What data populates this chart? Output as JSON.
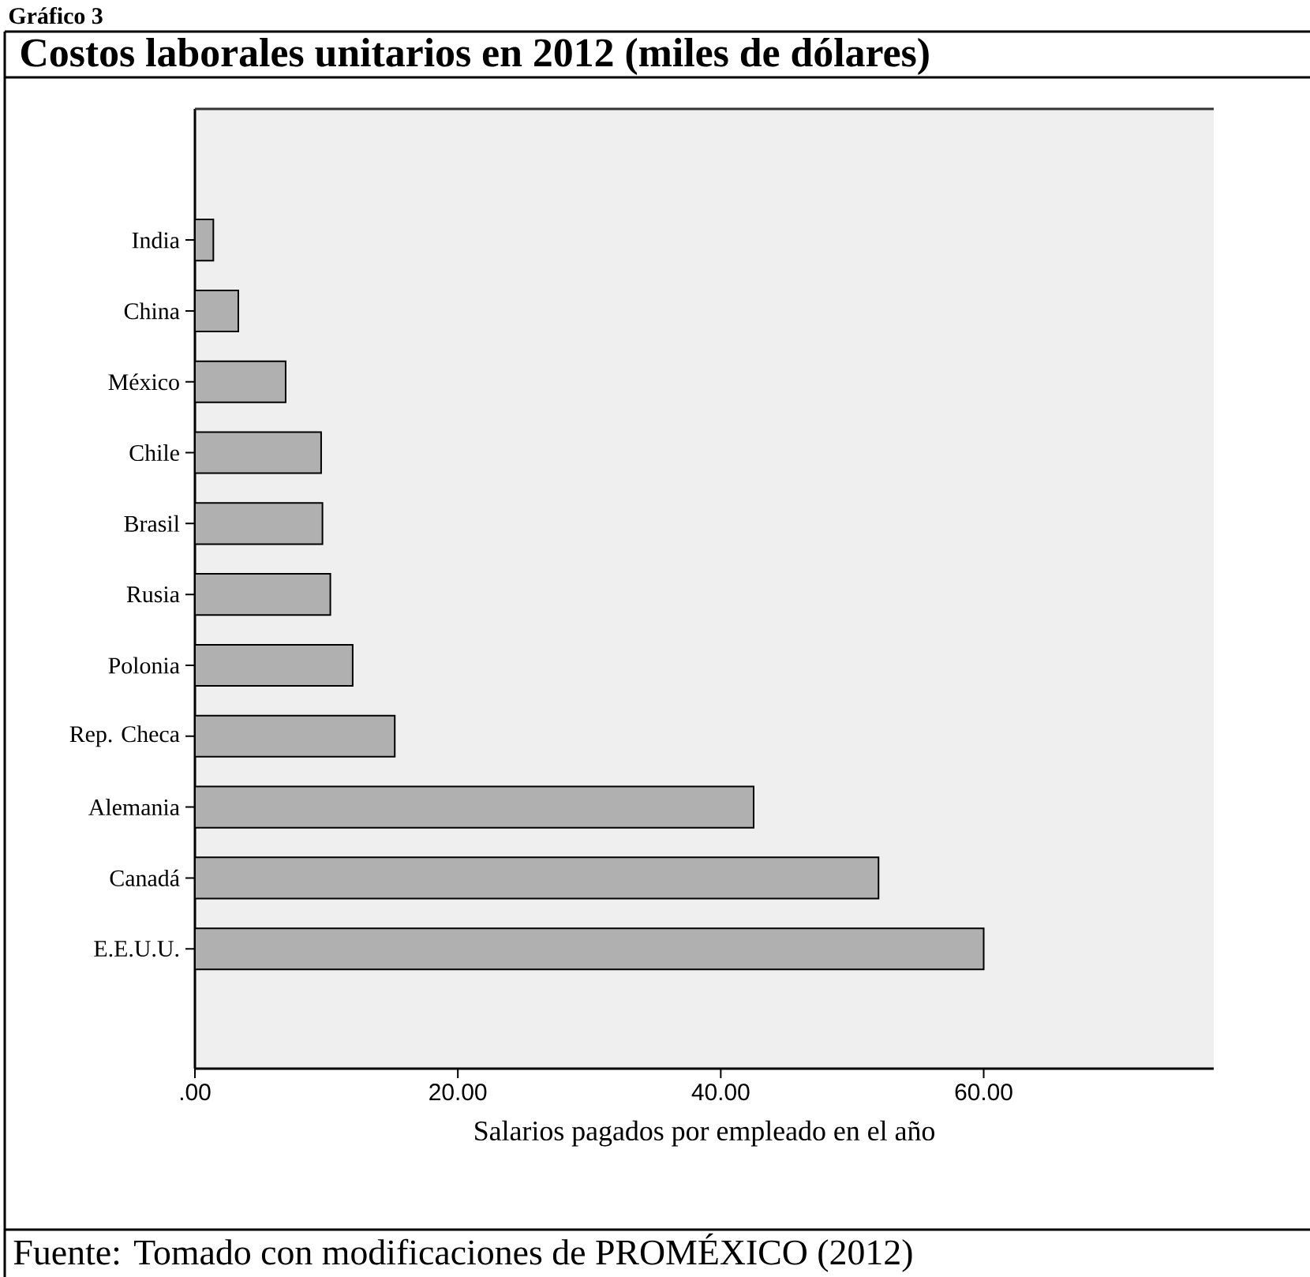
{
  "chart_data": {
    "type": "bar",
    "orientation": "horizontal",
    "title": "Costos laborales unitarios en 2012 (miles de dólares)",
    "xlabel": "Salarios pagados por empleado en el año",
    "categories": [
      "India",
      "China",
      "México",
      "Chile",
      "Brasil",
      "Rusia",
      "Polonia",
      "Rep. Checa",
      "Alemania",
      "Canadá",
      "E.E.U.U."
    ],
    "values": [
      1.4,
      3.3,
      6.9,
      9.6,
      9.7,
      10.3,
      12.0,
      15.2,
      42.5,
      52.0,
      60.0
    ],
    "color": "#b0b0b0",
    "xlim": [
      0,
      77.5
    ],
    "xticks": [
      {
        "value": 0,
        "label": ".00"
      },
      {
        "value": 20,
        "label": "20.00"
      },
      {
        "value": 40,
        "label": "40.00"
      },
      {
        "value": 60,
        "label": "60.00"
      }
    ],
    "annotations": [
      "Gráfico 3",
      "Fuente: Tomado con modificaciones de PROMÉXICO (2012)"
    ]
  }
}
